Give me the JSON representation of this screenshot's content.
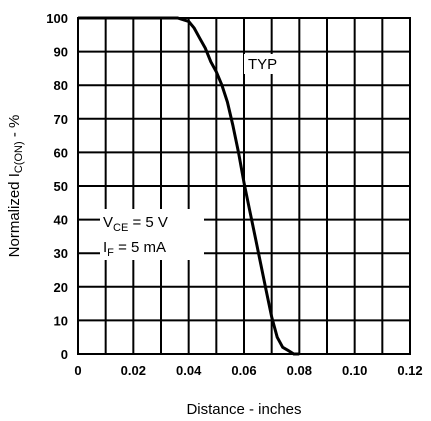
{
  "chart_data": {
    "type": "line",
    "xlabel": "Distance - inches",
    "ylabel": {
      "main": "Normalized I",
      "sub": "C(ON)",
      "suffix": " - %"
    },
    "xlim": [
      0,
      0.12
    ],
    "ylim": [
      0,
      100
    ],
    "grid": true,
    "x_ticks": [
      0,
      0.02,
      0.04,
      0.06,
      0.08,
      0.1,
      0.12
    ],
    "x_tick_labels": [
      "0",
      "0.02",
      "0.04",
      "0.06",
      "0.08",
      "0.10",
      "0.12"
    ],
    "y_ticks": [
      0,
      10,
      20,
      30,
      40,
      50,
      60,
      70,
      80,
      90,
      100
    ],
    "y_tick_labels": [
      "0",
      "10",
      "20",
      "30",
      "40",
      "50",
      "60",
      "70",
      "80",
      "90",
      "100"
    ],
    "series": [
      {
        "x": [
          0,
          0.036,
          0.04,
          0.042,
          0.044,
          0.046,
          0.048,
          0.05,
          0.052,
          0.054,
          0.056,
          0.058,
          0.06,
          0.062,
          0.064,
          0.066,
          0.068,
          0.07,
          0.072,
          0.074,
          0.076,
          0.078,
          0.08
        ],
        "y": [
          100,
          100,
          99,
          97,
          94,
          91,
          87,
          84,
          80,
          75,
          68,
          60,
          51,
          43,
          35,
          27,
          19,
          11,
          5,
          2,
          1,
          0,
          0
        ]
      }
    ],
    "annotations": {
      "typ": "TYP",
      "vce": {
        "pre": "V",
        "sub": "CE",
        "post": " = 5 V"
      },
      "if": {
        "pre": "I",
        "sub": "F",
        "post": " = 5 mA"
      }
    }
  }
}
